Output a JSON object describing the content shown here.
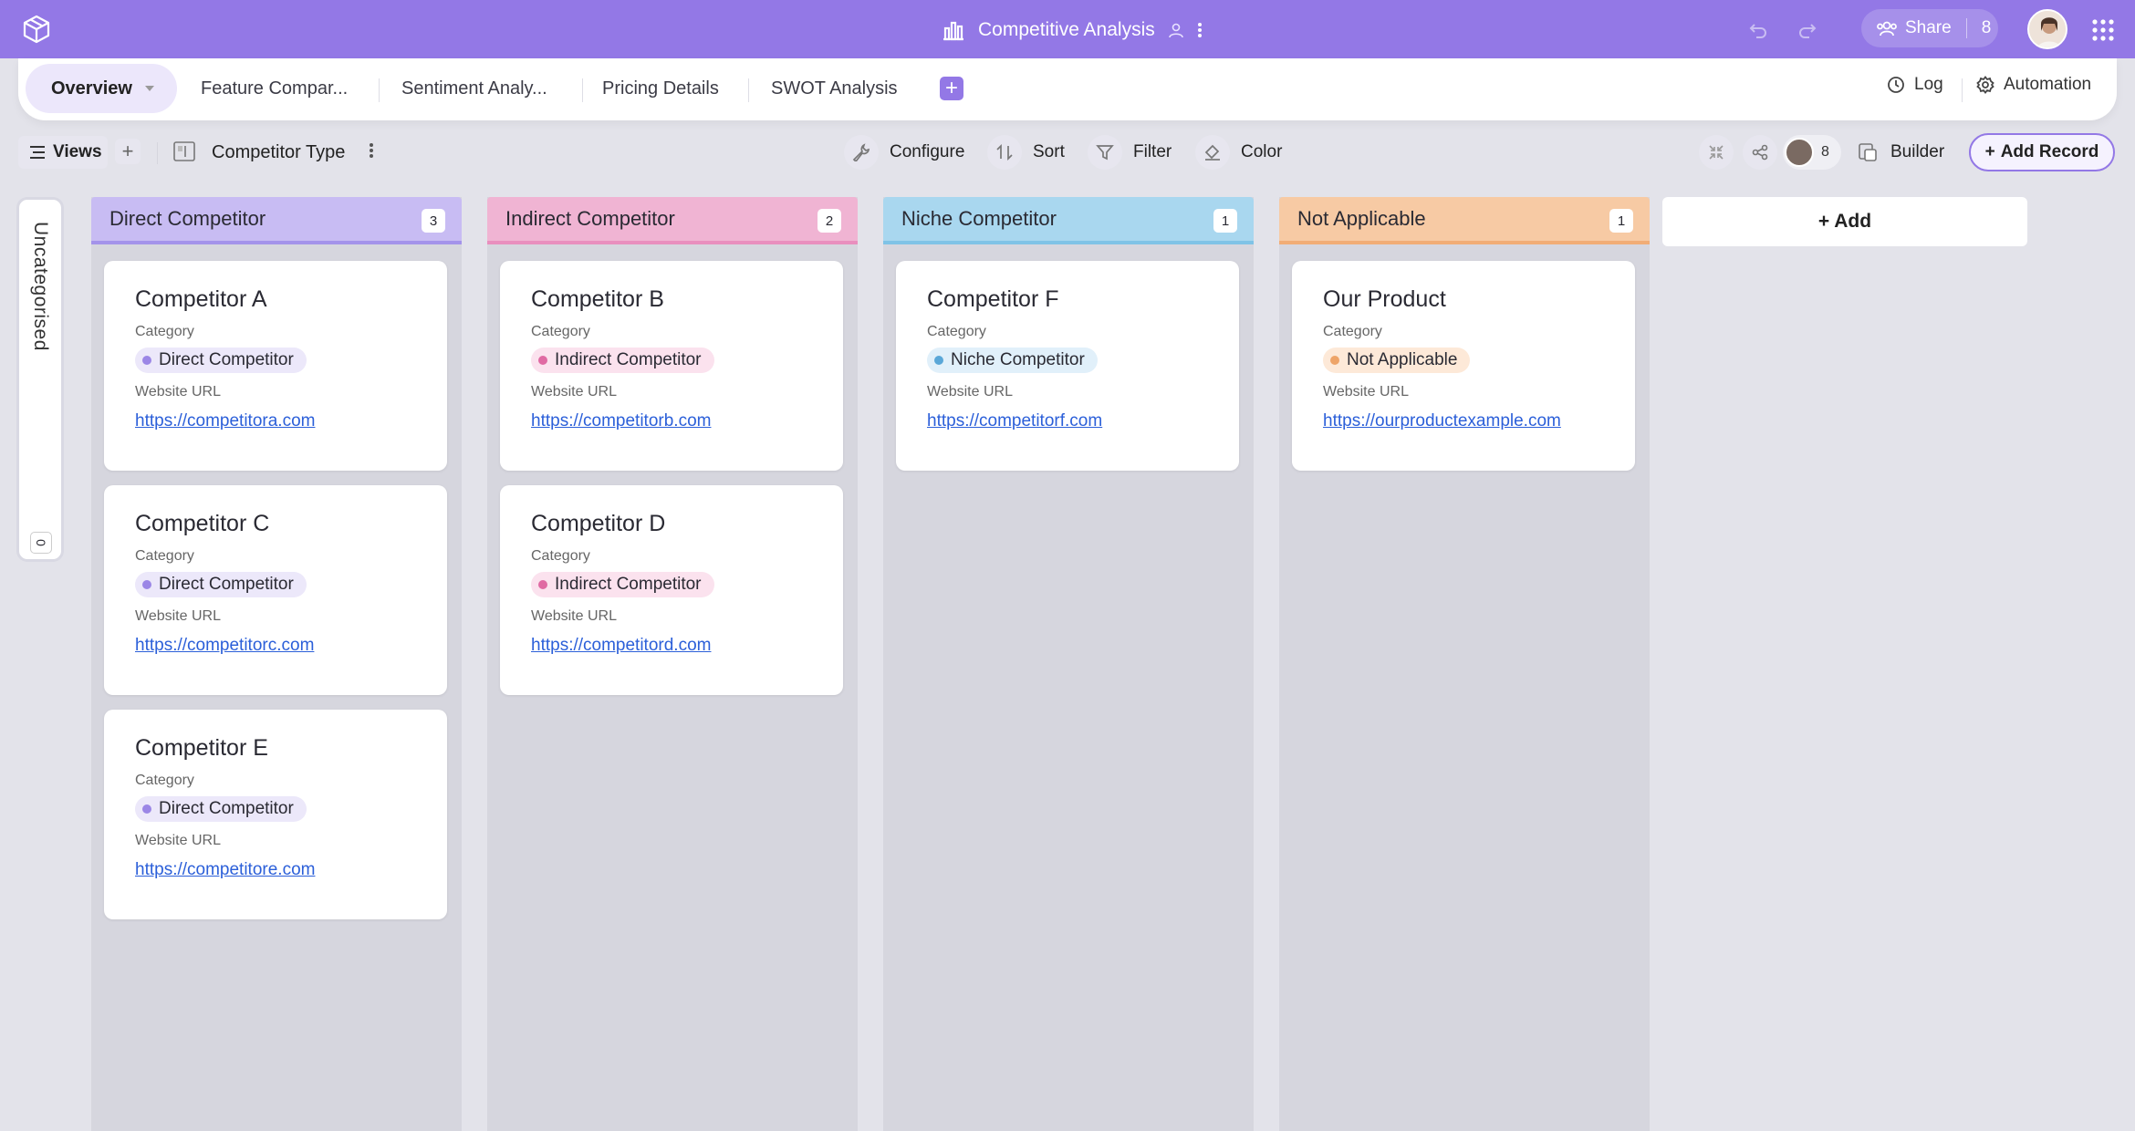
{
  "topbar": {
    "title": "Competitive Analysis",
    "share_label": "Share",
    "share_count": "8"
  },
  "tabs": [
    {
      "label": "Overview"
    },
    {
      "label": "Feature Compar..."
    },
    {
      "label": "Sentiment Analy..."
    },
    {
      "label": "Pricing Details"
    },
    {
      "label": "SWOT Analysis"
    }
  ],
  "tabbar_right": {
    "log_label": "Log",
    "automation_label": "Automation"
  },
  "toolbar": {
    "views_label": "Views",
    "group_by": "Competitor Type",
    "configure_label": "Configure",
    "sort_label": "Sort",
    "filter_label": "Filter",
    "color_label": "Color",
    "collaborators_count": "8",
    "builder_label": "Builder",
    "add_record_label": "Add Record"
  },
  "uncategorised": {
    "label": "Uncategorised",
    "count": "0"
  },
  "columns": [
    {
      "name": "Direct Competitor",
      "count": "3",
      "color": "#c8bcf3",
      "border": "#a493ea"
    },
    {
      "name": "Indirect Competitor",
      "count": "2",
      "color": "#f0b4d3",
      "border": "#e98fbe"
    },
    {
      "name": "Niche Competitor",
      "count": "1",
      "color": "#a9d7ef",
      "border": "#80c3e6"
    },
    {
      "name": "Not Applicable",
      "count": "1",
      "color": "#f7caa4",
      "border": "#f1ad76"
    }
  ],
  "field_labels": {
    "category": "Category",
    "website": "Website URL"
  },
  "cards": {
    "a": {
      "title": "Competitor A",
      "category": "Direct Competitor",
      "url": "https://competitora.com"
    },
    "c": {
      "title": "Competitor C",
      "category": "Direct Competitor",
      "url": "https://competitorc.com"
    },
    "e": {
      "title": "Competitor E",
      "category": "Direct Competitor",
      "url": "https://competitore.com"
    },
    "b": {
      "title": "Competitor B",
      "category": "Indirect Competitor",
      "url": "https://competitorb.com"
    },
    "d": {
      "title": "Competitor D",
      "category": "Indirect Competitor",
      "url": "https://competitord.com"
    },
    "f": {
      "title": "Competitor F",
      "category": "Niche Competitor",
      "url": "https://competitorf.com"
    },
    "ours": {
      "title": "Our Product",
      "category": "Not Applicable",
      "url": "https://ourproductexample.com"
    }
  },
  "badge_colors": {
    "direct": {
      "bg": "#ece8fa",
      "dot": "#9b86e6"
    },
    "indirect": {
      "bg": "#fbe2ee",
      "dot": "#e06aa3"
    },
    "niche": {
      "bg": "#e1f0fa",
      "dot": "#5aa7d8"
    },
    "na": {
      "bg": "#fde9d8",
      "dot": "#eea468"
    }
  },
  "add_column_label": "+ Add"
}
